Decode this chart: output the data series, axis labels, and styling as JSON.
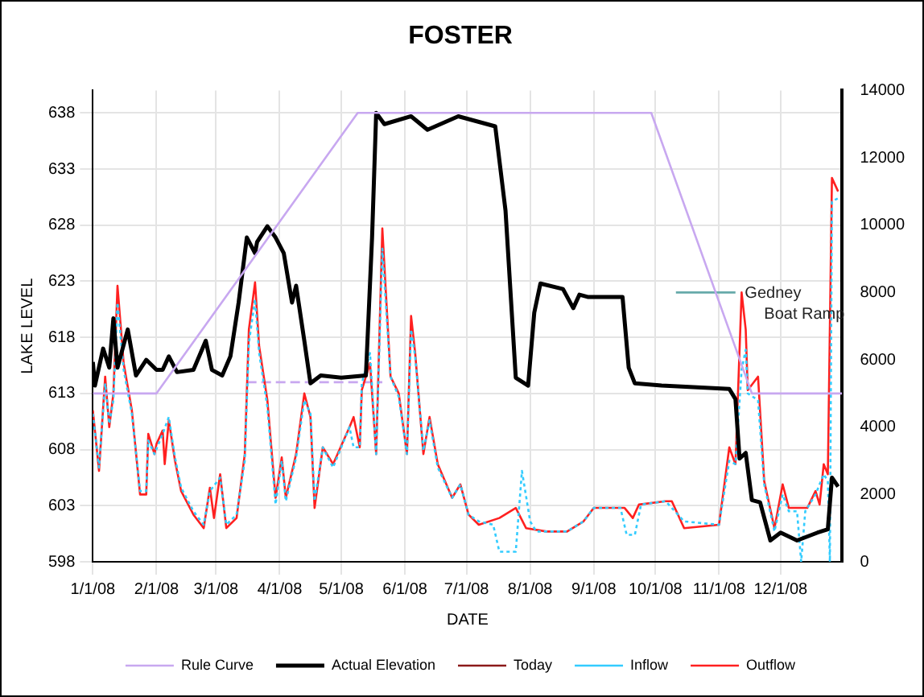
{
  "chart_data": {
    "type": "line",
    "title": "FOSTER",
    "xlabel": "DATE",
    "ylabel": "LAKE LEVEL",
    "xlim": [
      "2008-01-01",
      "2008-12-31"
    ],
    "xticks": [
      {
        "value": "2008-01-01",
        "label": "1/1/08"
      },
      {
        "value": "2008-02-01",
        "label": "2/1/08"
      },
      {
        "value": "2008-03-01",
        "label": "3/1/08"
      },
      {
        "value": "2008-04-01",
        "label": "4/1/08"
      },
      {
        "value": "2008-05-01",
        "label": "5/1/08"
      },
      {
        "value": "2008-06-01",
        "label": "6/1/08"
      },
      {
        "value": "2008-07-01",
        "label": "7/1/08"
      },
      {
        "value": "2008-08-01",
        "label": "8/1/08"
      },
      {
        "value": "2008-09-01",
        "label": "9/1/08"
      },
      {
        "value": "2008-10-01",
        "label": "10/1/08"
      },
      {
        "value": "2008-11-01",
        "label": "11/1/08"
      },
      {
        "value": "2008-12-01",
        "label": "12/1/08"
      }
    ],
    "ylim": [
      598,
      640
    ],
    "yticks": [
      598,
      603,
      608,
      613,
      618,
      623,
      628,
      633,
      638
    ],
    "y2lim": [
      0,
      14000
    ],
    "y2ticks": [
      0,
      2000,
      4000,
      6000,
      8000,
      10000,
      12000,
      14000
    ],
    "grid": true,
    "legend": "bottom",
    "marker": "none",
    "annotations": [
      "Gedney Boat Ramp"
    ],
    "series": [
      {
        "name": "Rule Curve",
        "color": "#c8a8f0",
        "line_style": "solid",
        "x": [
          "2008-01-01",
          "2008-02-01",
          "2008-05-09",
          "2008-09-29",
          "2008-11-17",
          "2008-12-31"
        ],
        "values": [
          613,
          613,
          638,
          638,
          613,
          613
        ]
      },
      {
        "name": "Actual Elevation",
        "color": "#000000",
        "line_style": "solid",
        "x": [
          "2008-01-01",
          "2008-01-02",
          "2008-01-06",
          "2008-01-09",
          "2008-01-11",
          "2008-01-13",
          "2008-01-18",
          "2008-01-22",
          "2008-01-27",
          "2008-02-01",
          "2008-02-04",
          "2008-02-07",
          "2008-02-11",
          "2008-02-19",
          "2008-02-25",
          "2008-02-28",
          "2008-03-04",
          "2008-03-08",
          "2008-03-12",
          "2008-03-16",
          "2008-03-20",
          "2008-03-21",
          "2008-03-26",
          "2008-03-30",
          "2008-04-03",
          "2008-04-07",
          "2008-04-09",
          "2008-04-13",
          "2008-04-16",
          "2008-04-21",
          "2008-05-01",
          "2008-05-13",
          "2008-05-16",
          "2008-05-18",
          "2008-05-22",
          "2008-06-04",
          "2008-06-12",
          "2008-06-27",
          "2008-07-15",
          "2008-07-20",
          "2008-07-25",
          "2008-07-31",
          "2008-08-03",
          "2008-08-06",
          "2008-08-17",
          "2008-08-22",
          "2008-08-25",
          "2008-08-29",
          "2008-09-15",
          "2008-09-18",
          "2008-09-21",
          "2008-10-04",
          "2008-11-06",
          "2008-11-09",
          "2008-11-11",
          "2008-11-14",
          "2008-11-17",
          "2008-11-21",
          "2008-11-26",
          "2008-12-01",
          "2008-12-09",
          "2008-12-19",
          "2008-12-24",
          "2008-12-26",
          "2008-12-29"
        ],
        "values": [
          615.8,
          613.7,
          617,
          615.3,
          619.7,
          615.3,
          618.7,
          614.6,
          616,
          615.1,
          615.1,
          616.3,
          614.9,
          615.1,
          617.7,
          615.1,
          614.6,
          616.3,
          621.1,
          626.9,
          625.5,
          626.5,
          627.9,
          626.9,
          625.5,
          621.1,
          622.6,
          617.7,
          613.9,
          614.6,
          614.4,
          614.6,
          626.9,
          638,
          637,
          637.7,
          636.5,
          637.7,
          636.8,
          629.3,
          614.4,
          613.7,
          620.2,
          622.8,
          622.3,
          620.6,
          621.8,
          621.6,
          621.6,
          615.3,
          613.9,
          613.7,
          613.4,
          612.5,
          607.2,
          607.7,
          603.5,
          603.3,
          599.9,
          600.6,
          599.9,
          600.6,
          600.9,
          605.5,
          604.7
        ]
      },
      {
        "name": "Today",
        "color": "#8b1a1a",
        "line_style": "dashed"
      },
      {
        "name": "Inflow",
        "color": "#33ccff",
        "line_style": "dotted",
        "axis": "y2",
        "x": [
          "2008-01-01",
          "2008-01-04",
          "2008-01-07",
          "2008-01-09",
          "2008-01-11",
          "2008-01-13",
          "2008-01-16",
          "2008-01-20",
          "2008-01-24",
          "2008-01-27",
          "2008-01-28",
          "2008-01-31",
          "2008-02-04",
          "2008-02-07",
          "2008-02-10",
          "2008-02-13",
          "2008-02-19",
          "2008-02-24",
          "2008-02-27",
          "2008-03-03",
          "2008-03-06",
          "2008-03-11",
          "2008-03-15",
          "2008-03-17",
          "2008-03-20",
          "2008-03-22",
          "2008-03-26",
          "2008-03-30",
          "2008-04-02",
          "2008-04-04",
          "2008-04-09",
          "2008-04-13",
          "2008-04-16",
          "2008-04-18",
          "2008-04-22",
          "2008-04-27",
          "2008-05-05",
          "2008-05-07",
          "2008-05-10",
          "2008-05-11",
          "2008-05-15",
          "2008-05-18",
          "2008-05-21",
          "2008-05-25",
          "2008-05-29",
          "2008-06-02",
          "2008-06-04",
          "2008-06-06",
          "2008-06-10",
          "2008-06-13",
          "2008-06-17",
          "2008-06-24",
          "2008-06-28",
          "2008-07-02",
          "2008-07-07",
          "2008-07-14",
          "2008-07-17",
          "2008-07-25",
          "2008-07-28",
          "2008-08-01",
          "2008-08-04",
          "2008-08-09",
          "2008-08-19",
          "2008-08-27",
          "2008-09-01",
          "2008-09-14",
          "2008-09-17",
          "2008-09-21",
          "2008-09-24",
          "2008-10-06",
          "2008-10-15",
          "2008-11-01",
          "2008-11-06",
          "2008-11-09",
          "2008-11-12",
          "2008-11-14",
          "2008-11-15",
          "2008-11-20",
          "2008-11-23",
          "2008-11-28",
          "2008-12-02",
          "2008-12-05",
          "2008-12-09",
          "2008-12-11",
          "2008-12-13",
          "2008-12-18",
          "2008-12-22",
          "2008-12-24",
          "2008-12-25",
          "2008-12-26",
          "2008-12-29"
        ],
        "values": [
          4400,
          2800,
          5300,
          4100,
          4800,
          7700,
          5700,
          4400,
          2100,
          2100,
          3600,
          3200,
          3800,
          4300,
          3100,
          2200,
          1500,
          1100,
          2100,
          2500,
          1100,
          1400,
          3000,
          6500,
          7800,
          6200,
          4600,
          1700,
          3000,
          1800,
          3100,
          4800,
          4400,
          1800,
          3400,
          2800,
          4000,
          3400,
          3400,
          5300,
          6200,
          3200,
          9300,
          5500,
          4900,
          3200,
          6900,
          6100,
          3300,
          4200,
          2800,
          1900,
          2300,
          1400,
          1200,
          1100,
          300,
          300,
          2700,
          1200,
          900,
          900,
          900,
          1200,
          1600,
          1600,
          800,
          800,
          1700,
          1800,
          1200,
          1100,
          3000,
          2900,
          5700,
          6300,
          5000,
          4800,
          2300,
          900,
          2000,
          1500,
          1500,
          0,
          1500,
          2000,
          2600,
          2400,
          0,
          10700,
          10800
        ]
      },
      {
        "name": "Outflow",
        "color": "#ff2020",
        "line_style": "solid",
        "axis": "y2",
        "x": [
          "2008-01-01",
          "2008-01-04",
          "2008-01-07",
          "2008-01-09",
          "2008-01-11",
          "2008-01-13",
          "2008-01-16",
          "2008-01-20",
          "2008-01-24",
          "2008-01-27",
          "2008-01-28",
          "2008-01-31",
          "2008-02-01",
          "2008-02-04",
          "2008-02-05",
          "2008-02-07",
          "2008-02-10",
          "2008-02-13",
          "2008-02-19",
          "2008-02-24",
          "2008-02-27",
          "2008-02-29",
          "2008-03-03",
          "2008-03-06",
          "2008-03-11",
          "2008-03-15",
          "2008-03-17",
          "2008-03-20",
          "2008-03-22",
          "2008-03-26",
          "2008-03-30",
          "2008-04-02",
          "2008-04-04",
          "2008-04-09",
          "2008-04-13",
          "2008-04-16",
          "2008-04-18",
          "2008-04-22",
          "2008-04-27",
          "2008-05-05",
          "2008-05-07",
          "2008-05-10",
          "2008-05-11",
          "2008-05-15",
          "2008-05-18",
          "2008-05-21",
          "2008-05-25",
          "2008-05-29",
          "2008-06-02",
          "2008-06-04",
          "2008-06-06",
          "2008-06-10",
          "2008-06-13",
          "2008-06-17",
          "2008-06-24",
          "2008-06-28",
          "2008-07-02",
          "2008-07-07",
          "2008-07-17",
          "2008-07-25",
          "2008-07-30",
          "2008-08-09",
          "2008-08-19",
          "2008-08-27",
          "2008-09-01",
          "2008-09-16",
          "2008-09-20",
          "2008-09-23",
          "2008-10-06",
          "2008-10-09",
          "2008-10-15",
          "2008-11-01",
          "2008-11-06",
          "2008-11-09",
          "2008-11-12",
          "2008-11-14",
          "2008-11-15",
          "2008-11-20",
          "2008-11-23",
          "2008-11-28",
          "2008-12-02",
          "2008-12-05",
          "2008-12-14",
          "2008-12-18",
          "2008-12-20",
          "2008-12-22",
          "2008-12-24",
          "2008-12-26",
          "2008-12-29"
        ],
        "values": [
          4500,
          2700,
          5500,
          4000,
          5000,
          8200,
          5900,
          4500,
          2000,
          2000,
          3800,
          3200,
          3500,
          3900,
          2900,
          4200,
          3000,
          2100,
          1400,
          1000,
          2200,
          1300,
          2600,
          1000,
          1300,
          3200,
          6900,
          8300,
          6400,
          4800,
          1900,
          3100,
          1900,
          3200,
          5000,
          4300,
          1600,
          3400,
          2900,
          4000,
          4300,
          3400,
          5100,
          5900,
          3200,
          9900,
          5500,
          5000,
          3200,
          7300,
          6200,
          3200,
          4300,
          2900,
          1900,
          2300,
          1400,
          1100,
          1300,
          1600,
          1000,
          900,
          900,
          1200,
          1600,
          1600,
          1300,
          1700,
          1800,
          1800,
          1000,
          1100,
          3400,
          2900,
          8000,
          6900,
          5100,
          5500,
          2400,
          1000,
          2300,
          1600,
          1600,
          2100,
          1700,
          2900,
          2600,
          11400,
          11000
        ]
      },
      {
        "color": "#c8a8f0",
        "line_style": "dashed",
        "x": [
          "2008-03-16",
          "2008-05-21"
        ],
        "values": [
          614,
          614
        ]
      },
      {
        "color": "#66aaaa",
        "line_style": "solid",
        "axis": "y2",
        "x": [
          "2008-10-11",
          "2008-11-09"
        ],
        "values": [
          8000,
          8000
        ]
      }
    ]
  }
}
